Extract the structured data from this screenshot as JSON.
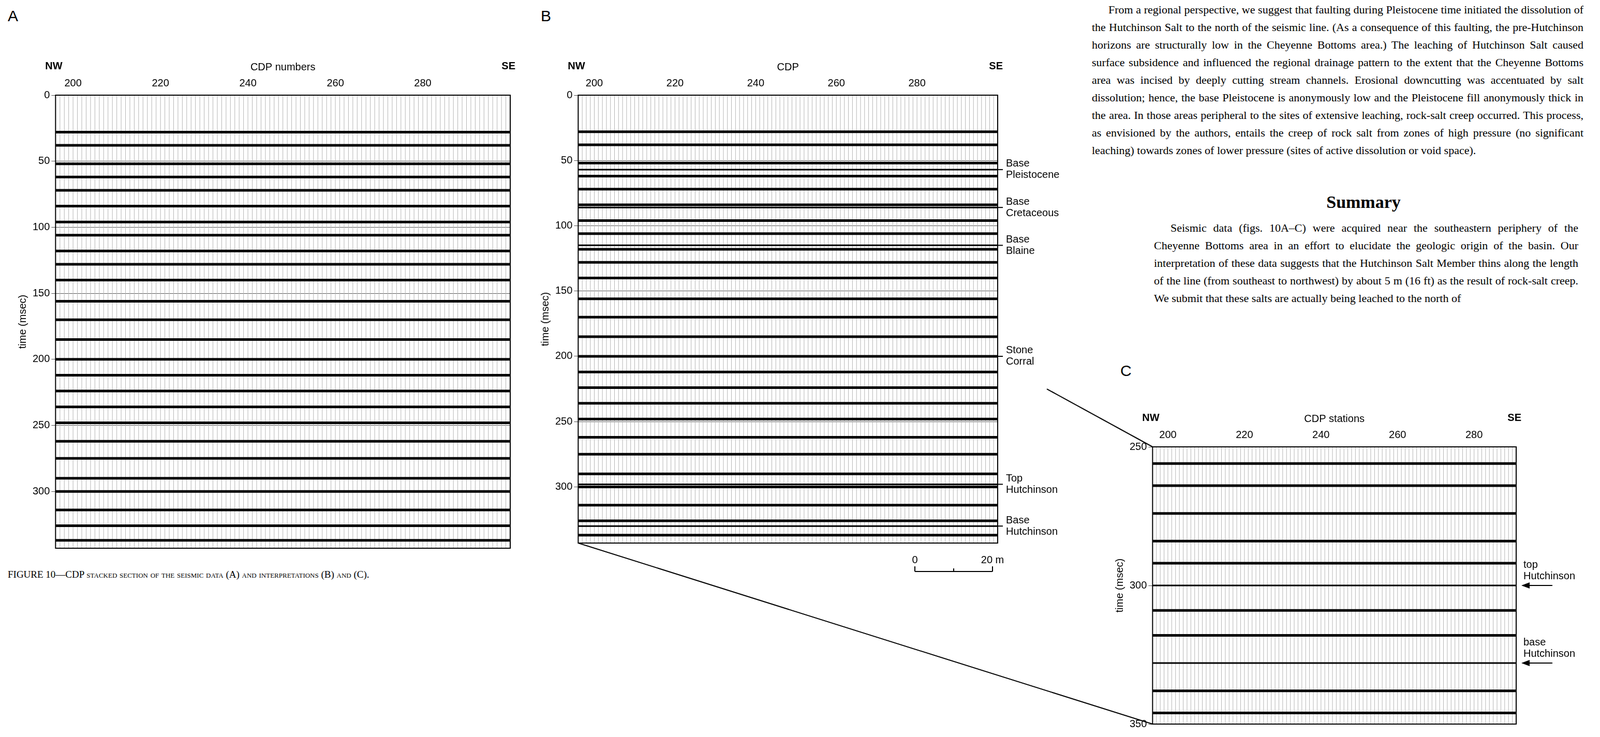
{
  "document": {
    "paragraph": "From a regional perspective, we suggest that faulting during Pleistocene time initiated the dissolution of the Hutchinson Salt to the north of the seismic line. (As a consequence of this faulting, the pre-Hutchinson horizons are structurally low in the Cheyenne Bottoms area.) The leaching of Hutchinson Salt caused surface subsidence and influenced the regional drainage pattern to the extent that the Cheyenne Bottoms area was incised by deeply cutting stream channels. Erosional downcutting was accentuated by salt dissolution; hence, the base Pleistocene is anonymously low and the Pleistocene fill anonymously thick in the area. In those areas peripheral to the sites of extensive leaching, rock-salt creep occurred. This process, as envisioned by the authors, entails the creep of rock salt from zones of high pressure (no significant leaching) towards zones of lower pressure (sites of active dissolution or void space).",
    "summary_heading": "Summary",
    "summary_text": "Seismic data (figs. 10A–C) were acquired near the southeastern periphery of the Cheyenne Bottoms area in an effort to elucidate the geologic origin of the basin. Our interpretation of these data suggests that the Hutchinson Salt Member thins along the length of the line (from southeast to northwest) by about 5 m (16 ft) as the result of rock-salt creep. We submit that these salts are actually being leached to the north of",
    "caption": "FIGURE 10—CDP stacked section of the seismic data (A) and interpretations (B) and (C)."
  },
  "chart_data": [
    {
      "panel": "A",
      "type": "line",
      "x_label": "CDP numbers",
      "y_label": "time (msec)",
      "annotations": [
        "NW",
        "SE"
      ],
      "color": "#000000",
      "xlim": [
        196,
        300
      ],
      "xticks": [
        200,
        220,
        240,
        260,
        280
      ],
      "ylim": [
        0,
        343
      ],
      "yticks": [
        0,
        50,
        100,
        150,
        200,
        250,
        300
      ],
      "grid": true,
      "reflectors": [
        28,
        38,
        52,
        62,
        72,
        84,
        96,
        106,
        118,
        128,
        140,
        156,
        170,
        185,
        200,
        212,
        224,
        236,
        248,
        262,
        275,
        290,
        300,
        314,
        326,
        337
      ]
    },
    {
      "panel": "B",
      "type": "line",
      "x_label": "CDP",
      "y_label": "time (msec)",
      "annotations": [
        "NW",
        "SE"
      ],
      "color": "#000000",
      "xlim": [
        196,
        300
      ],
      "xticks": [
        200,
        220,
        240,
        260,
        280
      ],
      "ylim": [
        0,
        343
      ],
      "yticks": [
        0,
        50,
        100,
        150,
        200,
        250,
        300
      ],
      "grid": true,
      "reflectors": [
        28,
        38,
        52,
        62,
        72,
        84,
        96,
        106,
        118,
        128,
        140,
        156,
        170,
        185,
        200,
        212,
        224,
        236,
        248,
        262,
        275,
        290,
        300,
        314,
        326,
        337
      ],
      "horizons": [
        {
          "name": "Base Pleistocene",
          "value": 57
        },
        {
          "name": "Base Cretaceous",
          "value": 86
        },
        {
          "name": "Base Blaine",
          "value": 115
        },
        {
          "name": "Stone Corral",
          "value": 200
        },
        {
          "name": "Top Hutchinson",
          "value": 298
        },
        {
          "name": "Base Hutchinson",
          "value": 330
        }
      ],
      "scale_bar": [
        "0",
        "20 m"
      ]
    },
    {
      "panel": "C",
      "type": "line",
      "x_label": "CDP stations",
      "y_label": "time (msec)",
      "annotations": [
        "NW",
        "SE"
      ],
      "color": "#000000",
      "xlim": [
        196,
        291
      ],
      "xticks": [
        200,
        220,
        240,
        260,
        280
      ],
      "ylim": [
        250,
        350
      ],
      "yticks": [
        250,
        300,
        350
      ],
      "grid": true,
      "reflectors": [
        256,
        264,
        274,
        284,
        292,
        309,
        318,
        338,
        346
      ],
      "horizons": [
        {
          "name": "top Hutchinson",
          "value": 300
        },
        {
          "name": "base Hutchinson",
          "value": 328
        }
      ]
    }
  ]
}
